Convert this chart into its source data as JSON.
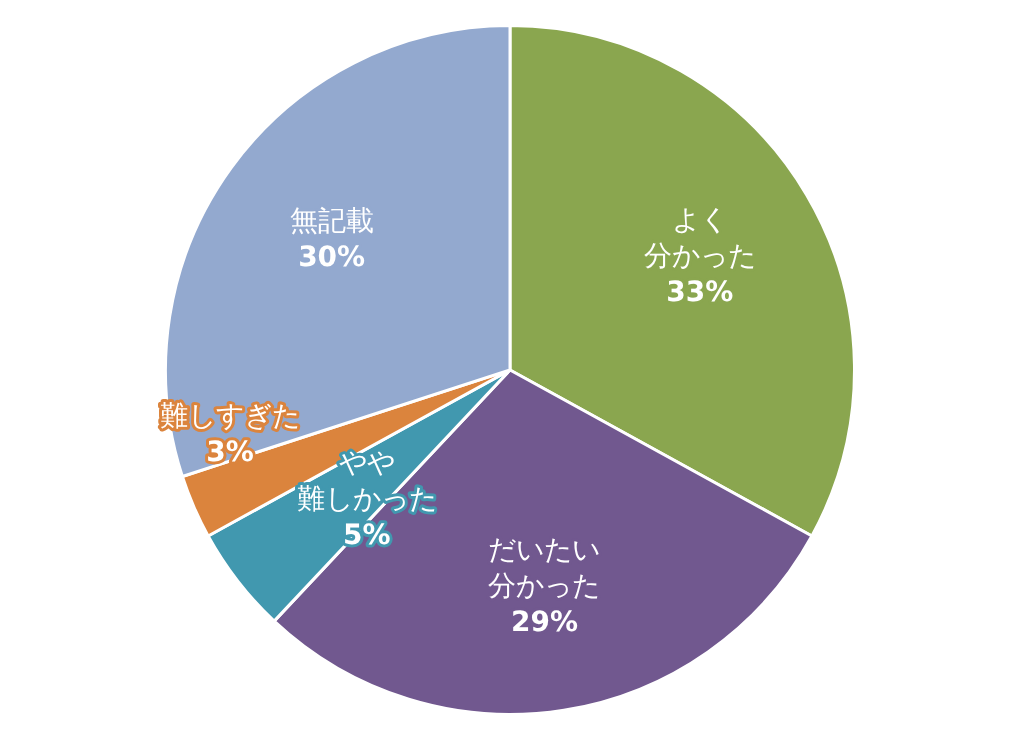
{
  "chart_data": {
    "type": "pie",
    "categories": [
      "よく分かった",
      "だいたい分かった",
      "やや難しかった",
      "難しすぎた",
      "無記載"
    ],
    "values": [
      33,
      29,
      5,
      3,
      30
    ],
    "value_labels": [
      "33%",
      "29%",
      "5%",
      "3%",
      "30%"
    ],
    "colors": [
      "#8aa64f",
      "#71588f",
      "#4198af",
      "#db843d",
      "#93a9cf"
    ],
    "legend": false
  }
}
